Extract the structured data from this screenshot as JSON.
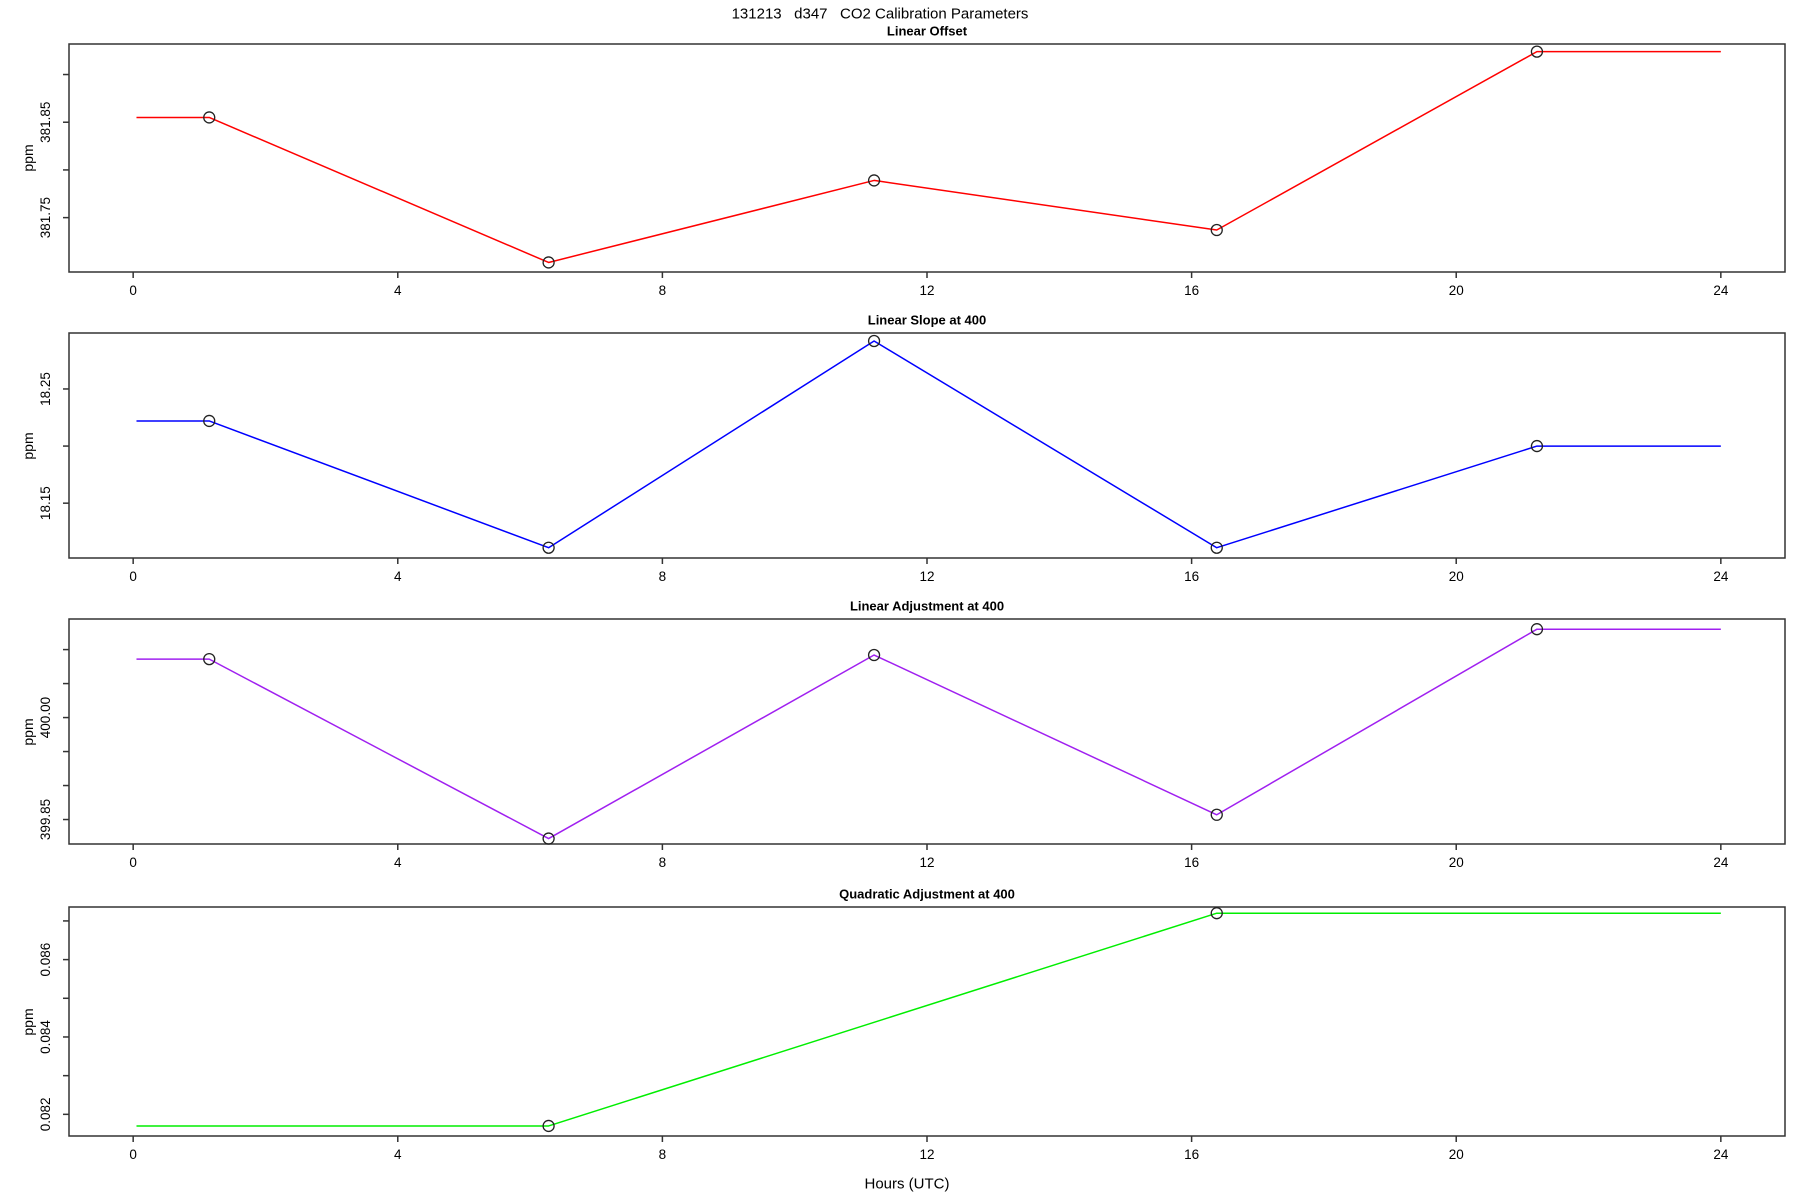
{
  "header": {
    "title": "131213   d347   CO2 Calibration Parameters"
  },
  "chart_data": {
    "type": "line",
    "layout": "4 stacked panels, shared x-axis, open-circle markers, R base-graphics style",
    "xlabel": "Hours (UTC)",
    "xlim": [
      -0.97,
      24.97
    ],
    "xticks": [
      0,
      4,
      8,
      12,
      16,
      20,
      24
    ],
    "xtick_labels": [
      "0",
      "4",
      "8",
      "12",
      "16",
      "20",
      "24"
    ],
    "axis_color": "#333333",
    "marker": "open-circle",
    "marker_color": "#222222",
    "panels": [
      {
        "title": "Linear Offset",
        "ylabel": "ppm",
        "color": "#FF0000",
        "x": [
          0.05,
          1.15,
          6.28,
          11.2,
          16.38,
          21.22,
          24
        ],
        "y": [
          381.855,
          381.855,
          381.703,
          381.789,
          381.737,
          381.924,
          381.924
        ],
        "markers": [
          false,
          true,
          true,
          true,
          true,
          true,
          false
        ],
        "ylim": [
          381.693,
          381.932
        ],
        "yticks": [
          381.75,
          381.8,
          381.85,
          381.9
        ],
        "ytick_labels": [
          "381.75",
          "",
          "381.85",
          ""
        ]
      },
      {
        "title": "Linear Slope at 400",
        "ylabel": "ppm",
        "color": "#0000FF",
        "x": [
          0.05,
          1.15,
          6.28,
          11.2,
          16.38,
          21.22,
          24
        ],
        "y": [
          18.222,
          18.222,
          18.111,
          18.292,
          18.111,
          18.2,
          18.2
        ],
        "markers": [
          false,
          true,
          true,
          true,
          true,
          true,
          false
        ],
        "ylim": [
          18.102,
          18.299
        ],
        "yticks": [
          18.15,
          18.2,
          18.25
        ],
        "ytick_labels": [
          "18.15",
          "",
          "18.25"
        ]
      },
      {
        "title": "Linear Adjustment at 400",
        "ylabel": "ppm",
        "color": "#A020F0",
        "x": [
          0.05,
          1.15,
          6.28,
          11.2,
          16.38,
          21.22,
          24
        ],
        "y": [
          400.086,
          400.086,
          399.822,
          400.092,
          399.857,
          400.13,
          400.13
        ],
        "markers": [
          false,
          true,
          true,
          true,
          true,
          true,
          false
        ],
        "ylim": [
          399.814,
          400.145
        ],
        "yticks": [
          399.85,
          399.9,
          399.95,
          400.0,
          400.05,
          400.1
        ],
        "ytick_labels": [
          "399.85",
          "",
          "",
          "400.00",
          "",
          ""
        ]
      },
      {
        "title": "Quadratic Adjustment at 400",
        "ylabel": "ppm",
        "color": "#00EE00",
        "x": [
          0.05,
          6.28,
          16.38,
          24
        ],
        "y": [
          0.0817,
          0.0817,
          0.0872,
          0.0872
        ],
        "markers": [
          false,
          true,
          true,
          false
        ],
        "ylim": [
          0.08144,
          0.08736
        ],
        "yticks": [
          0.082,
          0.083,
          0.084,
          0.085,
          0.086,
          0.087
        ],
        "ytick_labels": [
          "0.082",
          "",
          "0.084",
          "",
          "0.086",
          ""
        ]
      }
    ]
  }
}
